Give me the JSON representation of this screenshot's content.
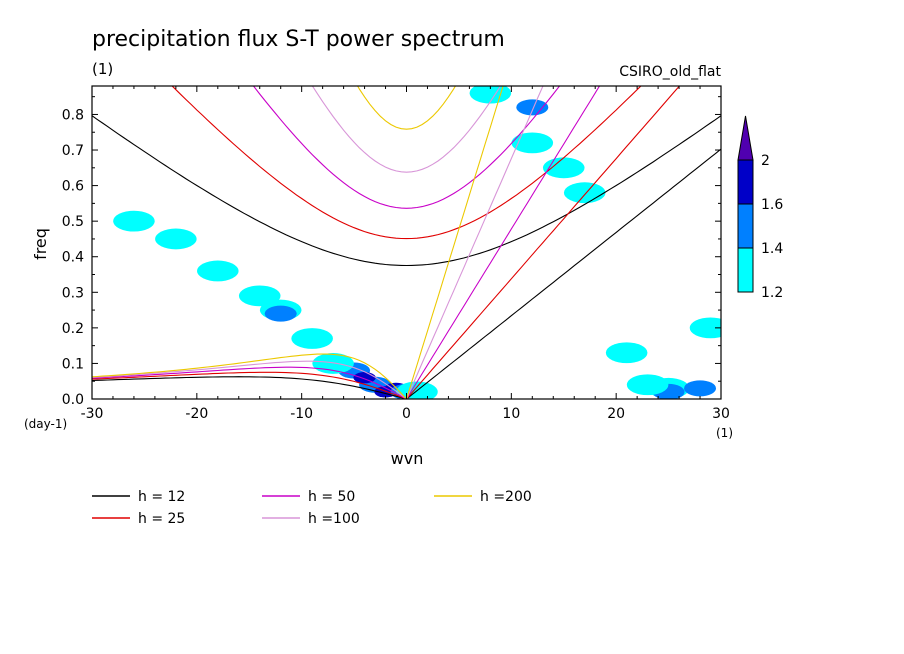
{
  "chart_data": {
    "type": "line",
    "title": "precipitation flux S-T power spectrum",
    "subtitle_left": "(1)",
    "subtitle_right": "CSIRO_old_flat",
    "xlabel": "wvn",
    "ylabel": "freq",
    "x_unit": "(1)",
    "y_unit": "(day-1)",
    "xlim": [
      -30,
      30
    ],
    "ylim": [
      0,
      0.88
    ],
    "x_ticks": [
      -30,
      -20,
      -10,
      0,
      10,
      20,
      30
    ],
    "x_tick_labels": [
      "-30",
      "-20",
      "-10",
      "0",
      "10",
      "20",
      "30"
    ],
    "y_ticks": [
      0,
      0.1,
      0.2,
      0.3,
      0.4,
      0.5,
      0.6,
      0.7,
      0.8
    ],
    "y_tick_labels": [
      "0.0",
      "0.1",
      "0.2",
      "0.3",
      "0.4",
      "0.5",
      "0.6",
      "0.7",
      "0.8"
    ],
    "series": [
      {
        "name": "h = 12",
        "h": 12,
        "color": "#000000"
      },
      {
        "name": "h = 25",
        "h": 25,
        "color": "#e00000"
      },
      {
        "name": "h = 50",
        "h": 50,
        "color": "#c800c8"
      },
      {
        "name": "h =100",
        "h": 100,
        "color": "#d896d8"
      },
      {
        "name": "h =200",
        "h": 200,
        "color": "#ecc800"
      }
    ],
    "colorbar": {
      "levels": [
        1.2,
        1.4,
        1.6,
        2
      ],
      "labels": [
        "1.2",
        "1.4",
        "1.6",
        "2"
      ],
      "colors": [
        "#00ffff",
        "#0080ff",
        "#0000c8",
        "#5000b0"
      ]
    },
    "blobs": [
      {
        "x": -3,
        "y": 0.04,
        "level": 2
      },
      {
        "x": -1,
        "y": 0.03,
        "level": 3
      },
      {
        "x": -5,
        "y": 0.08,
        "level": 2
      },
      {
        "x": -4,
        "y": 0.06,
        "level": 3
      },
      {
        "x": -7,
        "y": 0.1,
        "level": 1
      },
      {
        "x": -2,
        "y": 0.02,
        "level": 3
      },
      {
        "x": 0,
        "y": 0.02,
        "level": 2
      },
      {
        "x": 1,
        "y": 0.02,
        "level": 1
      },
      {
        "x": -12,
        "y": 0.25,
        "level": 1
      },
      {
        "x": -12,
        "y": 0.24,
        "level": 2
      },
      {
        "x": -14,
        "y": 0.29,
        "level": 1
      },
      {
        "x": -18,
        "y": 0.36,
        "level": 1
      },
      {
        "x": -9,
        "y": 0.17,
        "level": 1
      },
      {
        "x": 25,
        "y": 0.03,
        "level": 1
      },
      {
        "x": 25,
        "y": 0.02,
        "level": 2
      },
      {
        "x": 23,
        "y": 0.04,
        "level": 1
      },
      {
        "x": 28,
        "y": 0.03,
        "level": 2
      },
      {
        "x": 21,
        "y": 0.13,
        "level": 1
      },
      {
        "x": 12,
        "y": 0.72,
        "level": 1
      },
      {
        "x": 15,
        "y": 0.65,
        "level": 1
      },
      {
        "x": 12,
        "y": 0.82,
        "level": 2
      },
      {
        "x": 8,
        "y": 0.86,
        "level": 1
      },
      {
        "x": 17,
        "y": 0.58,
        "level": 1
      },
      {
        "x": -26,
        "y": 0.5,
        "level": 1
      },
      {
        "x": -22,
        "y": 0.45,
        "level": 1
      },
      {
        "x": 29,
        "y": 0.2,
        "level": 1
      }
    ]
  }
}
